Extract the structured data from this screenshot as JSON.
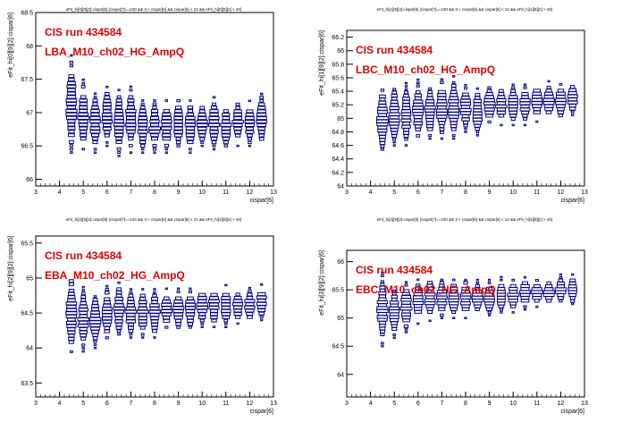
{
  "chart_data": [
    {
      "type": "box2d",
      "title": "eFit_hi[0][9][2]:cispar[6] {cispar[7]==100 && 3 < cispar[6] && cispar[6] < 12 && eFit_hi[0][9][2] > 40}",
      "annotation_line1": "CIS run 434584",
      "annotation_line2": "LBA_M10_ch02_HG_AmpQ",
      "xlabel": "cispar[6]",
      "ylabel": "eFit_hi[0][9][2]:cispar[6]",
      "xlim": [
        3,
        13
      ],
      "ylim": [
        65.9,
        68.5
      ],
      "xticks": [
        3,
        4,
        5,
        6,
        7,
        8,
        9,
        10,
        11,
        12,
        13
      ],
      "yticks": [
        66,
        66.5,
        67,
        67.5,
        68,
        68.5
      ],
      "columns": [
        {
          "x": 4.5,
          "center": 67.1,
          "spread": 0.75
        },
        {
          "x": 5.0,
          "center": 66.95,
          "spread": 0.55
        },
        {
          "x": 5.5,
          "center": 66.85,
          "spread": 0.45
        },
        {
          "x": 6.0,
          "center": 66.95,
          "spread": 0.45
        },
        {
          "x": 6.5,
          "center": 66.85,
          "spread": 0.5
        },
        {
          "x": 7.0,
          "center": 66.9,
          "spread": 0.5
        },
        {
          "x": 7.5,
          "center": 66.8,
          "spread": 0.4
        },
        {
          "x": 8.0,
          "center": 66.8,
          "spread": 0.4
        },
        {
          "x": 8.5,
          "center": 66.8,
          "spread": 0.4
        },
        {
          "x": 9.0,
          "center": 66.85,
          "spread": 0.4
        },
        {
          "x": 9.5,
          "center": 66.8,
          "spread": 0.4
        },
        {
          "x": 10.0,
          "center": 66.85,
          "spread": 0.35
        },
        {
          "x": 10.5,
          "center": 66.85,
          "spread": 0.4
        },
        {
          "x": 11.0,
          "center": 66.8,
          "spread": 0.35
        },
        {
          "x": 11.5,
          "center": 66.85,
          "spread": 0.35
        },
        {
          "x": 12.0,
          "center": 66.85,
          "spread": 0.35
        },
        {
          "x": 12.5,
          "center": 66.9,
          "spread": 0.4
        }
      ]
    },
    {
      "type": "box2d",
      "title": "eFit_hi[1][9][2]:cispar[6] {cispar[7]==100 && 3 < cispar[6] && cispar[6] < 12 && eFit_hi[1][9][2] > 40}",
      "annotation_line1": "CIS run 434584",
      "annotation_line2": "LBC_M10_ch02_HG_AmpQ",
      "xlabel": "cispar[6]",
      "ylabel": "eFit_hi[1][9][2]:cispar[6]",
      "xlim": [
        3,
        13
      ],
      "ylim": [
        64,
        66.3
      ],
      "xticks": [
        3,
        4,
        5,
        6,
        7,
        8,
        9,
        10,
        11,
        12,
        13
      ],
      "yticks": [
        64,
        64.2,
        64.4,
        64.6,
        64.8,
        65,
        65.2,
        65.4,
        65.6,
        65.8,
        66,
        66.2
      ],
      "columns": [
        {
          "x": 4.5,
          "center": 65.0,
          "spread": 0.55
        },
        {
          "x": 5.0,
          "center": 65.05,
          "spread": 0.45
        },
        {
          "x": 5.5,
          "center": 65.05,
          "spread": 0.45
        },
        {
          "x": 6.0,
          "center": 65.1,
          "spread": 0.45
        },
        {
          "x": 6.5,
          "center": 65.1,
          "spread": 0.4
        },
        {
          "x": 7.0,
          "center": 65.15,
          "spread": 0.45
        },
        {
          "x": 7.5,
          "center": 65.15,
          "spread": 0.45
        },
        {
          "x": 8.0,
          "center": 65.15,
          "spread": 0.35
        },
        {
          "x": 8.5,
          "center": 65.1,
          "spread": 0.35
        },
        {
          "x": 9.0,
          "center": 65.2,
          "spread": 0.3
        },
        {
          "x": 9.5,
          "center": 65.2,
          "spread": 0.3
        },
        {
          "x": 10.0,
          "center": 65.2,
          "spread": 0.3
        },
        {
          "x": 10.5,
          "center": 65.2,
          "spread": 0.3
        },
        {
          "x": 11.0,
          "center": 65.25,
          "spread": 0.3
        },
        {
          "x": 11.5,
          "center": 65.25,
          "spread": 0.3
        },
        {
          "x": 12.0,
          "center": 65.25,
          "spread": 0.3
        },
        {
          "x": 12.5,
          "center": 65.3,
          "spread": 0.25
        }
      ]
    },
    {
      "type": "box2d",
      "title": "eFit_hi[2][9][2]:cispar[6] {cispar[7]==100 && 3 < cispar[6] && cispar[6] < 12 && eFit_hi[2][9][2] > 40}",
      "annotation_line1": "CIS run 434584",
      "annotation_line2": "EBA_M10_ch02_HG_AmpQ",
      "xlabel": "cispar[6]",
      "ylabel": "eFit_hi[2][9][2]:cispar[6]",
      "xlim": [
        3,
        13
      ],
      "ylim": [
        63.3,
        65.6
      ],
      "xticks": [
        3,
        4,
        5,
        6,
        7,
        8,
        9,
        10,
        11,
        12,
        13
      ],
      "yticks": [
        63.5,
        64,
        64.5,
        65,
        65.5
      ],
      "columns": [
        {
          "x": 4.5,
          "center": 64.5,
          "spread": 0.6
        },
        {
          "x": 5.0,
          "center": 64.4,
          "spread": 0.45
        },
        {
          "x": 5.5,
          "center": 64.4,
          "spread": 0.4
        },
        {
          "x": 6.0,
          "center": 64.5,
          "spread": 0.4
        },
        {
          "x": 6.5,
          "center": 64.55,
          "spread": 0.4
        },
        {
          "x": 7.0,
          "center": 64.5,
          "spread": 0.35
        },
        {
          "x": 7.5,
          "center": 64.5,
          "spread": 0.35
        },
        {
          "x": 8.0,
          "center": 64.5,
          "spread": 0.35
        },
        {
          "x": 8.5,
          "center": 64.55,
          "spread": 0.3
        },
        {
          "x": 9.0,
          "center": 64.55,
          "spread": 0.3
        },
        {
          "x": 9.5,
          "center": 64.55,
          "spread": 0.3
        },
        {
          "x": 10.0,
          "center": 64.6,
          "spread": 0.3
        },
        {
          "x": 10.5,
          "center": 64.6,
          "spread": 0.3
        },
        {
          "x": 11.0,
          "center": 64.6,
          "spread": 0.3
        },
        {
          "x": 11.5,
          "center": 64.6,
          "spread": 0.25
        },
        {
          "x": 12.0,
          "center": 64.6,
          "spread": 0.25
        },
        {
          "x": 12.5,
          "center": 64.65,
          "spread": 0.25
        }
      ]
    },
    {
      "type": "box2d",
      "title": "eFit_hi[3][9][2]:cispar[6] {cispar[7]==100 && 3 < cispar[6] && cispar[6] < 12 && eFit_hi[3][9][2] > 40}",
      "annotation_line1": "CIS run 434584",
      "annotation_line2": "EBC_M10_ch02_HG_AmpQ",
      "xlabel": "cispar[6]",
      "ylabel": "eFit_hi[3][9][2]:cispar[6]",
      "xlim": [
        3,
        13
      ],
      "ylim": [
        63.6,
        66.2
      ],
      "xticks": [
        3,
        4,
        5,
        6,
        7,
        8,
        9,
        10,
        11,
        12,
        13
      ],
      "yticks": [
        64,
        64.5,
        65,
        65.5,
        66
      ],
      "columns": [
        {
          "x": 4.5,
          "center": 65.15,
          "spread": 0.65
        },
        {
          "x": 5.0,
          "center": 65.1,
          "spread": 0.45
        },
        {
          "x": 5.5,
          "center": 65.2,
          "spread": 0.45
        },
        {
          "x": 6.0,
          "center": 65.3,
          "spread": 0.4
        },
        {
          "x": 6.5,
          "center": 65.35,
          "spread": 0.4
        },
        {
          "x": 7.0,
          "center": 65.35,
          "spread": 0.35
        },
        {
          "x": 7.5,
          "center": 65.35,
          "spread": 0.35
        },
        {
          "x": 8.0,
          "center": 65.35,
          "spread": 0.35
        },
        {
          "x": 8.5,
          "center": 65.35,
          "spread": 0.3
        },
        {
          "x": 9.0,
          "center": 65.35,
          "spread": 0.3
        },
        {
          "x": 9.5,
          "center": 65.4,
          "spread": 0.3
        },
        {
          "x": 10.0,
          "center": 65.4,
          "spread": 0.3
        },
        {
          "x": 10.5,
          "center": 65.45,
          "spread": 0.3
        },
        {
          "x": 11.0,
          "center": 65.45,
          "spread": 0.25
        },
        {
          "x": 11.5,
          "center": 65.45,
          "spread": 0.25
        },
        {
          "x": 12.0,
          "center": 65.5,
          "spread": 0.25
        },
        {
          "x": 12.5,
          "center": 65.5,
          "spread": 0.25
        }
      ]
    }
  ]
}
